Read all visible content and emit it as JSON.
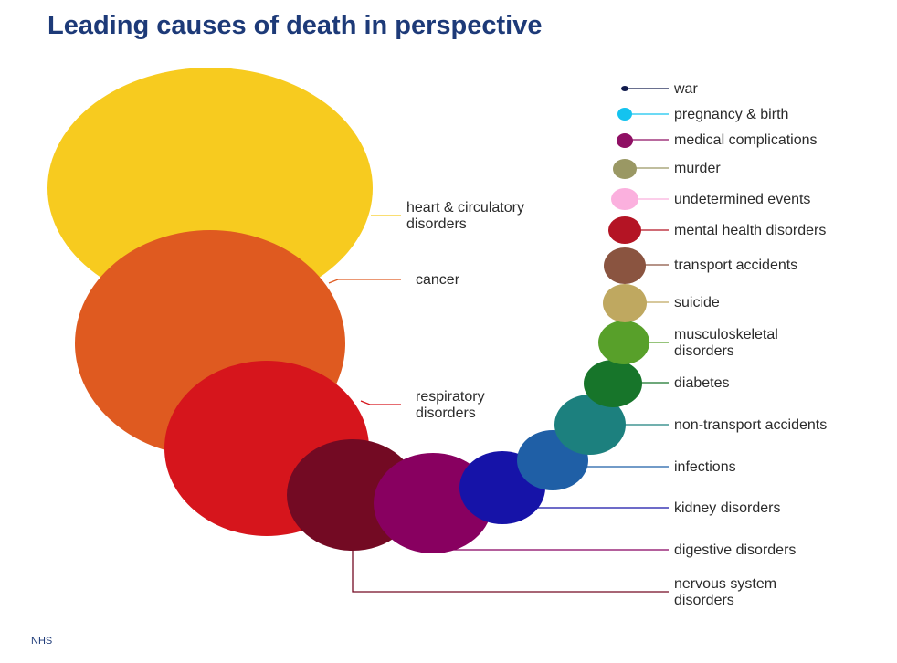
{
  "chart_data": {
    "type": "bubble",
    "title": "Leading causes of death in perspective",
    "source": "NHS",
    "categories": [
      {
        "name": "heart & circulatory disorders",
        "label_lines": [
          "heart & circulatory",
          "disorders"
        ],
        "color": "#f7cb1f"
      },
      {
        "name": "cancer",
        "label_lines": [
          "cancer"
        ],
        "color": "#df5a20"
      },
      {
        "name": "respiratory disorders",
        "label_lines": [
          "respiratory",
          "disorders"
        ],
        "color": "#d6151c"
      },
      {
        "name": "nervous system disorders",
        "label_lines": [
          "nervous system",
          "disorders"
        ],
        "color": "#730a23"
      },
      {
        "name": "digestive disorders",
        "label_lines": [
          "digestive disorders"
        ],
        "color": "#880060"
      },
      {
        "name": "kidney disorders",
        "label_lines": [
          "kidney disorders"
        ],
        "color": "#1613a8"
      },
      {
        "name": "infections",
        "label_lines": [
          "infections"
        ],
        "color": "#1f5fa6"
      },
      {
        "name": "non-transport accidents",
        "label_lines": [
          "non-transport accidents"
        ],
        "color": "#1c807e"
      },
      {
        "name": "diabetes",
        "label_lines": [
          "diabetes"
        ],
        "color": "#17752a"
      },
      {
        "name": "musculoskeletal disorders",
        "label_lines": [
          "musculoskeletal",
          "disorders"
        ],
        "color": "#58a02a"
      },
      {
        "name": "suicide",
        "label_lines": [
          "suicide"
        ],
        "color": "#bfa860"
      },
      {
        "name": "transport accidents",
        "label_lines": [
          "transport accidents"
        ],
        "color": "#8a5440"
      },
      {
        "name": "mental health disorders",
        "label_lines": [
          "mental health disorders"
        ],
        "color": "#b41424"
      },
      {
        "name": "undetermined events",
        "label_lines": [
          "undetermined events"
        ],
        "color": "#fbb0de"
      },
      {
        "name": "murder",
        "label_lines": [
          "murder"
        ],
        "color": "#9a9864"
      },
      {
        "name": "medical complications",
        "label_lines": [
          "medical complications"
        ],
        "color": "#8f1064"
      },
      {
        "name": "pregnancy & birth",
        "label_lines": [
          "pregnancy & birth"
        ],
        "color": "#14c3ef"
      },
      {
        "name": "war",
        "label_lines": [
          "war"
        ],
        "color": "#101a4c"
      }
    ]
  }
}
